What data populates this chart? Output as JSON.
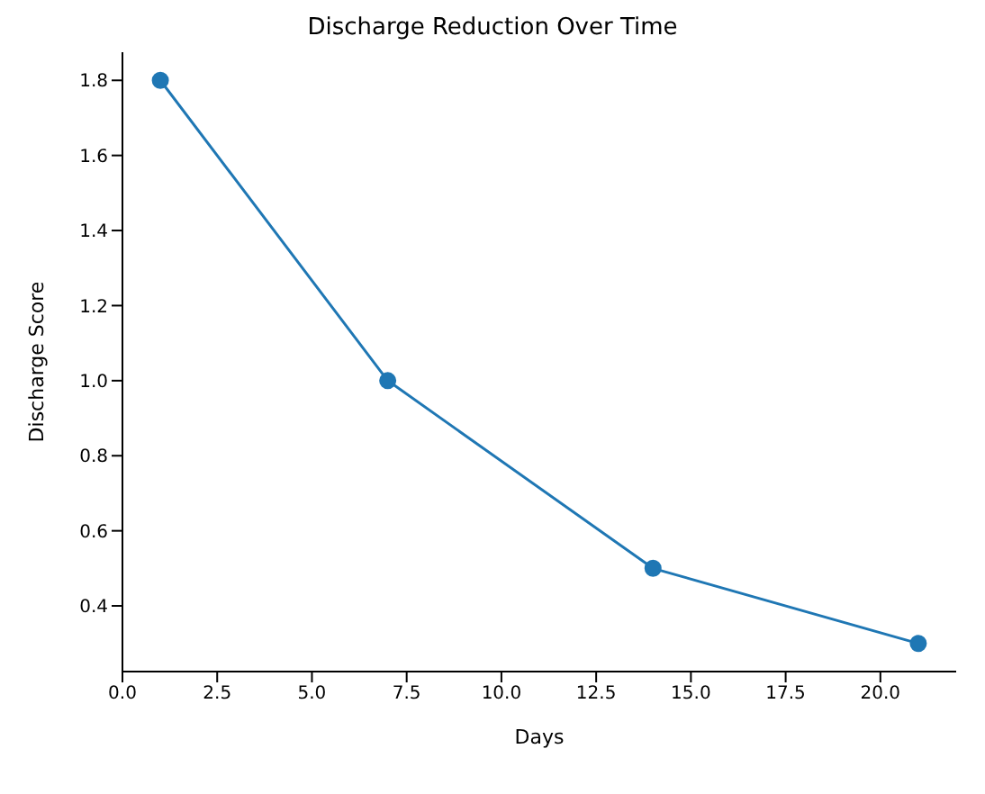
{
  "chart_data": {
    "type": "line",
    "title": "Discharge Reduction Over Time",
    "xlabel": "Days",
    "ylabel": "Discharge Score",
    "x": [
      1,
      7,
      14,
      21
    ],
    "series": [
      {
        "color": "#1f77b4",
        "values": [
          1.8,
          1.0,
          0.5,
          0.3
        ]
      }
    ],
    "xlim": [
      0,
      22
    ],
    "xticks": [
      {
        "value": 0,
        "label": "0.0"
      },
      {
        "value": 2.5,
        "label": "2.5"
      },
      {
        "value": 5,
        "label": "5.0"
      },
      {
        "value": 7.5,
        "label": "7.5"
      },
      {
        "value": 10,
        "label": "10.0"
      },
      {
        "value": 12.5,
        "label": "12.5"
      },
      {
        "value": 15,
        "label": "15.0"
      },
      {
        "value": 17.5,
        "label": "17.5"
      },
      {
        "value": 20,
        "label": "20.0"
      }
    ],
    "ylim": [
      0.225,
      1.875
    ],
    "yticks": [
      {
        "value": 0.4,
        "label": "0.4"
      },
      {
        "value": 0.6,
        "label": "0.6"
      },
      {
        "value": 0.8,
        "label": "0.8"
      },
      {
        "value": 1.0,
        "label": "1.0"
      },
      {
        "value": 1.2,
        "label": "1.2"
      },
      {
        "value": 1.4,
        "label": "1.4"
      },
      {
        "value": 1.6,
        "label": "1.6"
      },
      {
        "value": 1.8,
        "label": "1.8"
      }
    ],
    "marker": "circle",
    "line_style": "solid",
    "grid": false,
    "legend": false
  }
}
